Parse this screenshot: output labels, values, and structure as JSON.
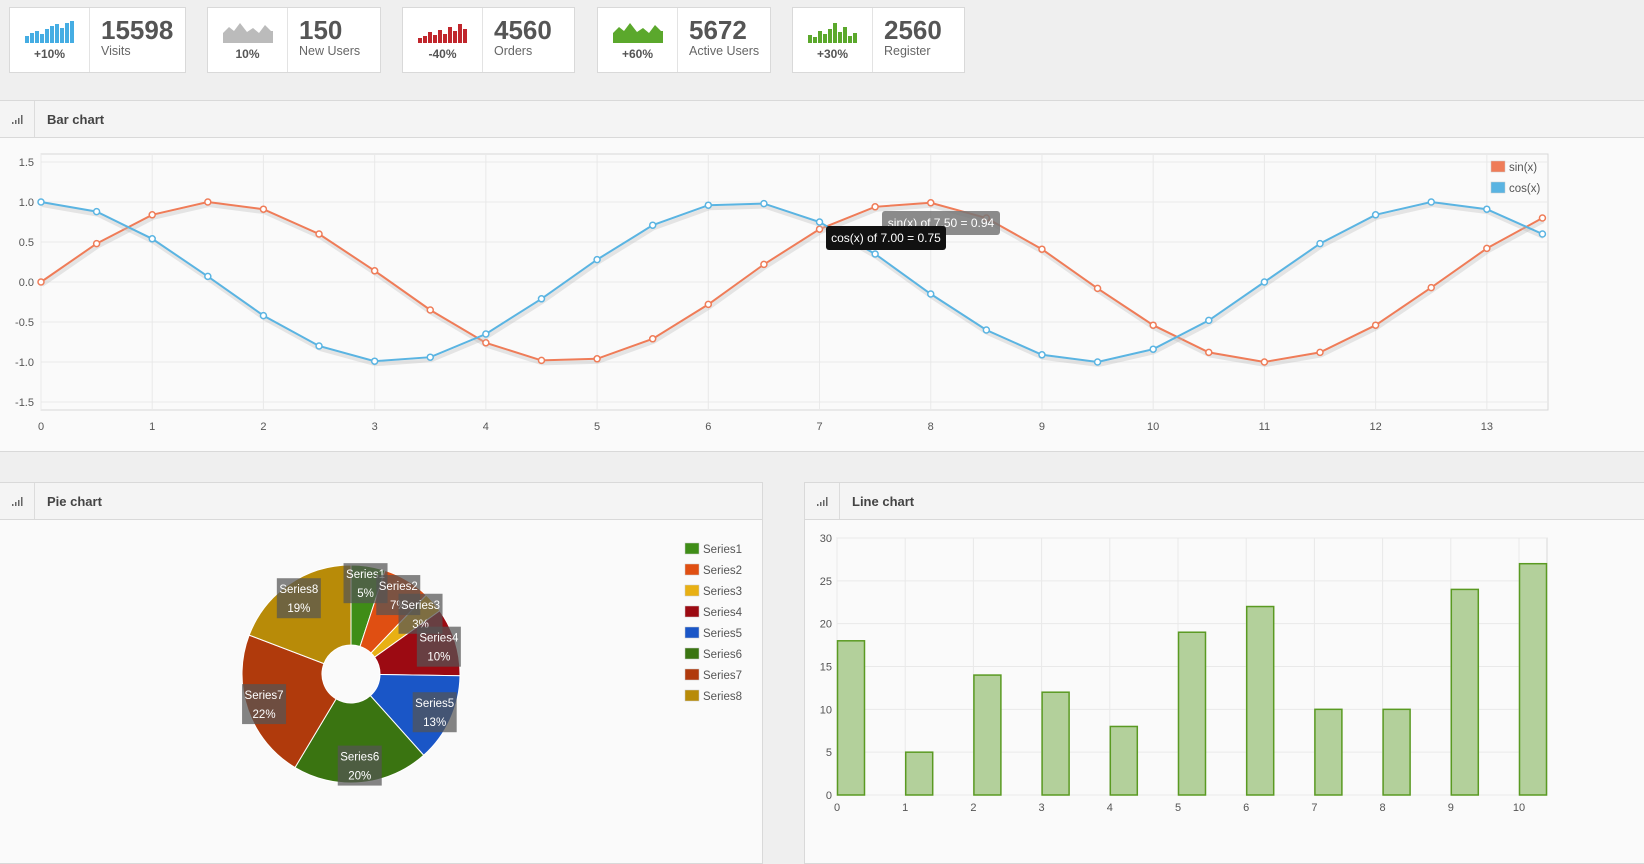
{
  "stats": [
    {
      "value": "15598",
      "label": "Visits",
      "change": "+10%",
      "color": "#45ade3",
      "shape": "bars"
    },
    {
      "value": "150",
      "label": "New Users",
      "change": "10%",
      "color": "#bbbbbb",
      "shape": "area"
    },
    {
      "value": "4560",
      "label": "Orders",
      "change": "-40%",
      "color": "#c0262c",
      "shape": "bars"
    },
    {
      "value": "5672",
      "label": "Active Users",
      "change": "+60%",
      "color": "#5ba82c",
      "shape": "area"
    },
    {
      "value": "2560",
      "label": "Register",
      "change": "+30%",
      "color": "#5ba82c",
      "shape": "bars"
    }
  ],
  "panels": {
    "bar": {
      "title": "Bar chart",
      "icon": "signal-icon"
    },
    "pie": {
      "title": "Pie chart",
      "icon": "signal-icon"
    },
    "line": {
      "title": "Line chart",
      "icon": "signal-icon"
    }
  },
  "chart_data": [
    {
      "type": "line",
      "x": [
        0,
        0.5,
        1,
        1.5,
        2,
        2.5,
        3,
        3.5,
        4,
        4.5,
        5,
        5.5,
        6,
        6.5,
        7,
        7.5,
        8,
        8.5,
        9,
        9.5,
        10,
        10.5,
        11,
        11.5,
        12,
        12.5,
        13,
        13.5
      ],
      "series": [
        {
          "name": "sin(x)",
          "color": "#ef7c58",
          "values": [
            0,
            0.48,
            0.84,
            1.0,
            0.91,
            0.6,
            0.14,
            -0.35,
            -0.76,
            -0.98,
            -0.96,
            -0.71,
            -0.28,
            0.22,
            0.66,
            0.94,
            0.99,
            0.8,
            0.41,
            -0.08,
            -0.54,
            -0.88,
            -1.0,
            -0.88,
            -0.54,
            -0.07,
            0.42,
            0.8
          ]
        },
        {
          "name": "cos(x)",
          "color": "#5ab4e2",
          "values": [
            1.0,
            0.88,
            0.54,
            0.07,
            -0.42,
            -0.8,
            -0.99,
            -0.94,
            -0.65,
            -0.21,
            0.28,
            0.71,
            0.96,
            0.98,
            0.75,
            0.35,
            -0.15,
            -0.6,
            -0.91,
            -1.0,
            -0.84,
            -0.48,
            0.0,
            0.48,
            0.84,
            1.0,
            0.91,
            0.6
          ]
        }
      ],
      "xticks": [
        0,
        1,
        2,
        3,
        4,
        5,
        6,
        7,
        8,
        9,
        10,
        11,
        12,
        13
      ],
      "yticks": [
        "1.5",
        "1.0",
        "0.5",
        "0.0",
        "-0.5",
        "-1.0",
        "-1.5"
      ],
      "xlim": [
        0,
        13.55
      ],
      "ylim": [
        -1.6,
        1.6
      ],
      "grid": true,
      "legend": "top-right",
      "tooltips": [
        "sin(x) of 7.50 = 0.94",
        "cos(x) of 7.00 = 0.75"
      ]
    },
    {
      "type": "pie",
      "donut": true,
      "slices": [
        {
          "name": "Series1",
          "value": 5,
          "label": "5%",
          "color": "#3f8d17"
        },
        {
          "name": "Series2",
          "value": 7,
          "label": "7%",
          "color": "#e04f12"
        },
        {
          "name": "Series3",
          "value": 3,
          "label": "3%",
          "color": "#e8b014"
        },
        {
          "name": "Series4",
          "value": 10,
          "label": "10%",
          "color": "#9c0a12"
        },
        {
          "name": "Series5",
          "value": 13,
          "label": "13%",
          "color": "#1a56c7"
        },
        {
          "name": "Series6",
          "value": 20,
          "label": "20%",
          "color": "#3a7411"
        },
        {
          "name": "Series7",
          "value": 22,
          "label": "22%",
          "color": "#b03a0c"
        },
        {
          "name": "Series8",
          "value": 19,
          "label": "19%",
          "color": "#b88b08"
        }
      ],
      "legend": "right"
    },
    {
      "type": "bar",
      "categories": [
        "0",
        "1",
        "2",
        "3",
        "4",
        "5",
        "6",
        "7",
        "8",
        "9",
        "10"
      ],
      "values": [
        18,
        5,
        14,
        12,
        8,
        19,
        22,
        10,
        10,
        24,
        27
      ],
      "yticks": [
        "30",
        "25",
        "20",
        "15",
        "10",
        "5",
        "0"
      ],
      "ylim": [
        0,
        30
      ],
      "color": "#b3d09b",
      "stroke": "#5a9a22",
      "grid": true
    }
  ]
}
